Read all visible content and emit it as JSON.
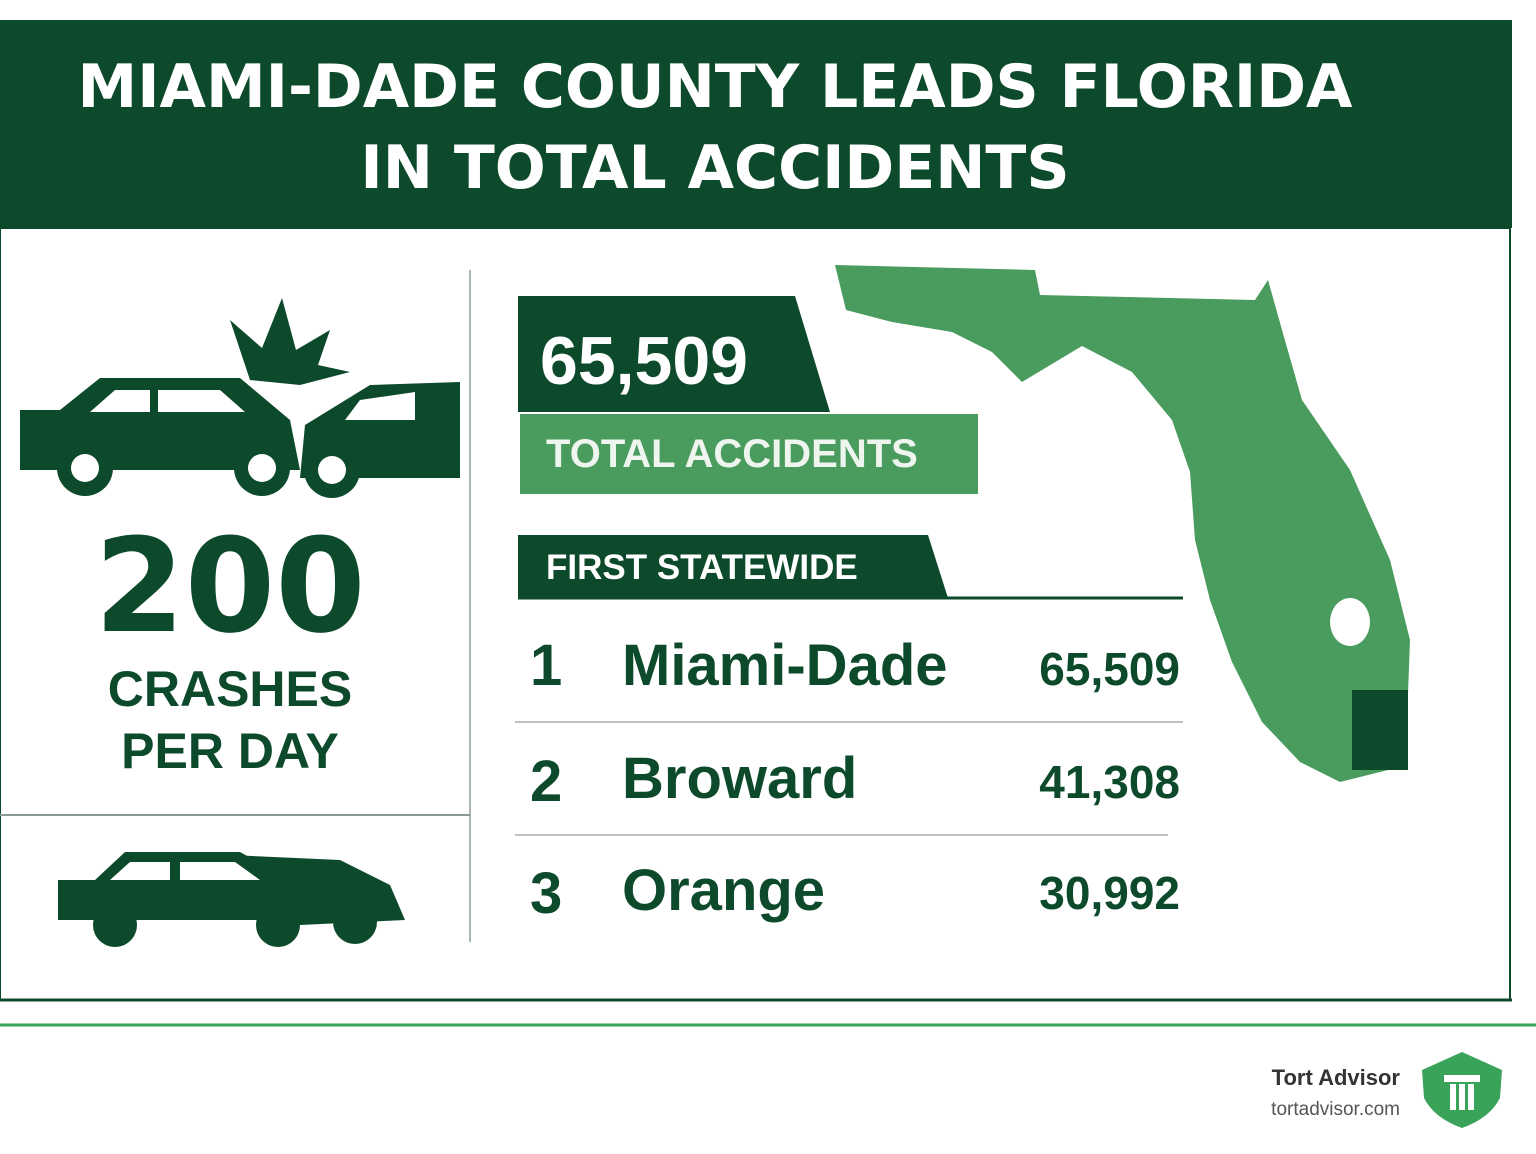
{
  "header": {
    "title_lines": [
      "MIAMI-DADE COUNTY LEADS FLORIDA",
      "IN TOTAL ACCIDENTS"
    ]
  },
  "left_panel": {
    "number": "200",
    "caption_lines": [
      "CRASHES",
      "PER DAY"
    ]
  },
  "stat": {
    "number": "65,509",
    "label": "TOTAL ACCIDENTS"
  },
  "ranking": {
    "heading": "FIRST STATEWIDE",
    "rows": [
      [
        "1",
        "Miami-Dade",
        "65,509"
      ],
      [
        "2",
        "Broward",
        "41,308"
      ],
      [
        "3",
        "Orange",
        "30,992"
      ]
    ]
  },
  "footer": {
    "brand": "Tort Advisor",
    "url": "tortadvisor.com"
  }
}
